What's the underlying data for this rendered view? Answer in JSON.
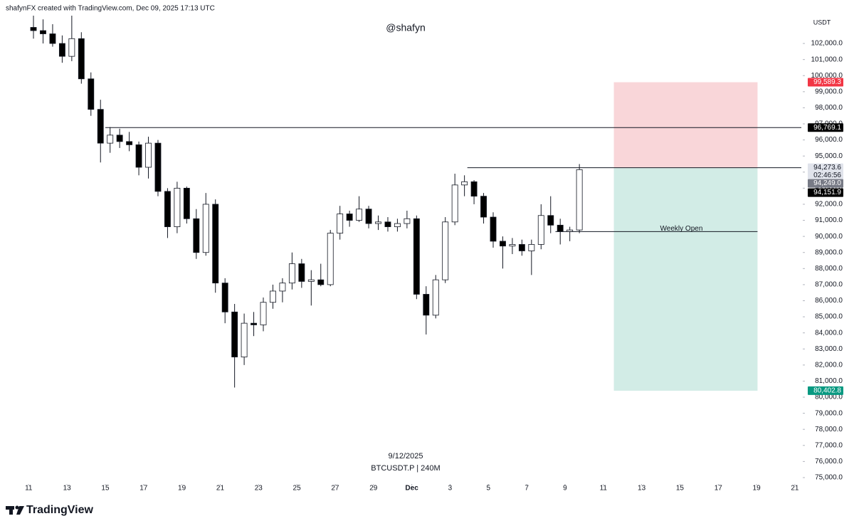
{
  "chart_data": {
    "type": "candlestick",
    "header": "shafynFX created with TradingView.com, Dec 09, 2025 17:13 UTC",
    "watermark": "@shafyn",
    "date_note": "9/12/2025",
    "symbol": "BTCUSDT.P | 240M",
    "currency": "USDT",
    "brand": "TradingView",
    "countdown": "02:46:56",
    "up_color": "#ffffff",
    "down_color": "#000000",
    "x": [
      11.25,
      11.75,
      12.25,
      12.75,
      13.25,
      13.75,
      14.25,
      14.75,
      15.25,
      15.75,
      16.25,
      16.75,
      17.25,
      17.75,
      18.25,
      18.75,
      19.25,
      19.75,
      20.25,
      20.75,
      21.25,
      21.75,
      22.25,
      22.75,
      23.25,
      23.75,
      24.25,
      24.75,
      25.25,
      25.75,
      26.25,
      26.75,
      27.25,
      27.75,
      28.25,
      28.75,
      29.25,
      29.75,
      30.25,
      30.75,
      31.25,
      31.75,
      32.25,
      32.75,
      33.25,
      33.75,
      34.25,
      34.75,
      35.25,
      35.75,
      36.25,
      36.75,
      37.25,
      37.75,
      38.25,
      38.75,
      39.25,
      39.75
    ],
    "open": [
      103000,
      102800,
      102600,
      102000,
      101200,
      102300,
      99800,
      97900,
      95800,
      96300,
      95900,
      95700,
      94300,
      95800,
      92800,
      90600,
      93000,
      91100,
      89000,
      92000,
      87100,
      85300,
      82500,
      84600,
      84500,
      85900,
      86600,
      87100,
      88300,
      87200,
      87300,
      87000,
      90200,
      91400,
      91000,
      91700,
      90800,
      90900,
      90600,
      90800,
      91100,
      86400,
      85100,
      87300,
      90900,
      93200,
      93400,
      92500,
      91200,
      89700,
      89400,
      89500,
      89100,
      89500,
      91300,
      90700,
      90300,
      90400
    ],
    "high": [
      104500,
      103500,
      103200,
      102500,
      104000,
      102700,
      100200,
      98500,
      96800,
      96700,
      96500,
      95900,
      96200,
      96000,
      93000,
      93400,
      93100,
      91700,
      92700,
      92300,
      87400,
      85800,
      85200,
      85300,
      86200,
      87000,
      87400,
      89000,
      88600,
      87900,
      88300,
      90400,
      91900,
      91600,
      92500,
      91900,
      91300,
      91200,
      91100,
      91600,
      91300,
      86900,
      87600,
      91200,
      93900,
      93800,
      93500,
      92700,
      91500,
      90000,
      89900,
      89800,
      89800,
      92000,
      92500,
      91100,
      90600,
      94500
    ],
    "low": [
      102300,
      102000,
      101800,
      100800,
      100900,
      99500,
      97500,
      94600,
      95200,
      95500,
      95300,
      93800,
      93600,
      92500,
      89900,
      90200,
      90800,
      88600,
      88800,
      86500,
      84600,
      80600,
      82000,
      83800,
      84100,
      85500,
      85900,
      86700,
      86800,
      85700,
      86900,
      86900,
      89800,
      90600,
      90900,
      90500,
      90400,
      90300,
      90300,
      90500,
      86100,
      83900,
      84900,
      87100,
      90700,
      92500,
      92000,
      90800,
      89300,
      88000,
      88900,
      88800,
      87600,
      89200,
      90200,
      89500,
      89700,
      90200
    ],
    "close": [
      102800,
      102600,
      102000,
      101200,
      102300,
      99800,
      97900,
      95800,
      96300,
      95900,
      95700,
      94300,
      95800,
      92800,
      90600,
      93000,
      91100,
      89000,
      92000,
      87100,
      85300,
      82500,
      84600,
      84500,
      85900,
      86600,
      87100,
      88300,
      87200,
      87300,
      87000,
      90200,
      91400,
      91000,
      91700,
      90800,
      90900,
      90600,
      90800,
      91100,
      86400,
      85100,
      87300,
      90900,
      93200,
      93400,
      92500,
      91200,
      89700,
      89400,
      89500,
      89100,
      89500,
      91300,
      90700,
      90300,
      90400,
      94151.9
    ],
    "xlim": [
      9.8,
      51.3
    ],
    "xticks": [
      11,
      13,
      15,
      17,
      19,
      21,
      23,
      25,
      27,
      29,
      {
        "value": 31,
        "label": "Dec"
      },
      {
        "value": 33,
        "label": "3"
      },
      {
        "value": 35,
        "label": "5"
      },
      {
        "value": 37,
        "label": "7"
      },
      {
        "value": 39,
        "label": "9"
      },
      {
        "value": 41,
        "label": "11"
      },
      {
        "value": 43,
        "label": "13"
      },
      {
        "value": 45,
        "label": "15"
      },
      {
        "value": 47,
        "label": "17"
      },
      {
        "value": 49,
        "label": "19"
      },
      {
        "value": 51,
        "label": "21"
      }
    ],
    "ylim": [
      74600,
      103730
    ],
    "yticks": [
      {
        "value": 75000,
        "label": "75,000.0"
      },
      {
        "value": 76000,
        "label": "76,000.0"
      },
      {
        "value": 77000,
        "label": "77,000.0"
      },
      {
        "value": 78000,
        "label": "78,000.0"
      },
      {
        "value": 79000,
        "label": "79,000.0"
      },
      {
        "value": 80000,
        "label": "80,000.0"
      },
      {
        "value": 81000,
        "label": "81,000.0"
      },
      {
        "value": 82000,
        "label": "82,000.0"
      },
      {
        "value": 83000,
        "label": "83,000.0"
      },
      {
        "value": 84000,
        "label": "84,000.0"
      },
      {
        "value": 85000,
        "label": "85,000.0"
      },
      {
        "value": 86000,
        "label": "86,000.0"
      },
      {
        "value": 87000,
        "label": "87,000.0"
      },
      {
        "value": 88000,
        "label": "88,000.0"
      },
      {
        "value": 89000,
        "label": "89,000.0"
      },
      {
        "value": 90000,
        "label": "90,000.0"
      },
      {
        "value": 91000,
        "label": "91,000.0"
      },
      {
        "value": 92000,
        "label": "92,000.0"
      },
      {
        "value": 93000,
        "label": "93,000.0"
      },
      {
        "value": 94000,
        "label": "94,000.0"
      },
      {
        "value": 95000,
        "label": "95,000.0"
      },
      {
        "value": 96000,
        "label": "96,000.0"
      },
      {
        "value": 97000,
        "label": "97,000.0"
      },
      {
        "value": 98000,
        "label": "98,000.0"
      },
      {
        "value": 99000,
        "label": "99,000.0"
      },
      {
        "value": 100000,
        "label": "100,000.0"
      },
      {
        "value": 101000,
        "label": "101,000.0"
      },
      {
        "value": 102000,
        "label": "102,000.0"
      }
    ],
    "levels": [
      {
        "value": 96769.1,
        "label": "96,769.1",
        "x_start": 15.0
      },
      {
        "value": 94273.6,
        "label": "94,273.6",
        "x_start": 33.9
      }
    ],
    "weekly_open": {
      "label": "Weekly Open",
      "value": 90300,
      "x": [
        38.5,
        49.05
      ]
    },
    "position": {
      "x": [
        41.55,
        49.05
      ],
      "stop": {
        "value": 99589.3,
        "label": "99,589.3",
        "color": "#f9d6d9"
      },
      "entry": {
        "value": 94249.0,
        "label": "94,249.0"
      },
      "target": {
        "value": 80402.8,
        "label": "80,402.8",
        "color": "#d2ece6"
      }
    },
    "last_price": {
      "value": 94151.9,
      "label": "94,151.9"
    }
  }
}
